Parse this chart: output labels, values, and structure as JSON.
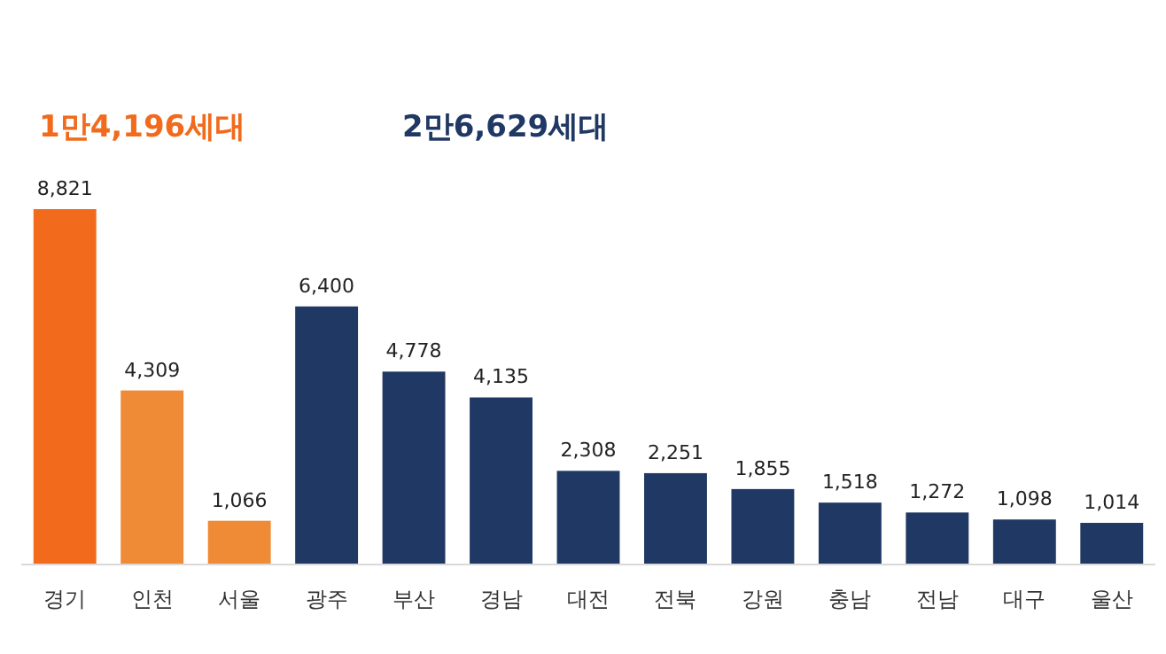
{
  "chart_data": {
    "type": "bar",
    "categories": [
      "경기",
      "인천",
      "서울",
      "광주",
      "부산",
      "경남",
      "대전",
      "전북",
      "강원",
      "충남",
      "전남",
      "대구",
      "울산"
    ],
    "values": [
      8821,
      4309,
      1066,
      6400,
      4778,
      4135,
      2308,
      2251,
      1855,
      1518,
      1272,
      1098,
      1014
    ],
    "colors": [
      "#f26a1b",
      "#ef8a36",
      "#ef8a36",
      "#203864",
      "#203864",
      "#203864",
      "#203864",
      "#203864",
      "#203864",
      "#203864",
      "#203864",
      "#203864",
      "#203864"
    ],
    "value_labels": [
      "8,821",
      "4,309",
      "1,066",
      "6,400",
      "4,778",
      "4,135",
      "2,308",
      "2,251",
      "1,855",
      "1,518",
      "1,272",
      "1,098",
      "1,014"
    ],
    "annotations": [
      "1만4,196세대",
      "2만6,629세대"
    ]
  }
}
